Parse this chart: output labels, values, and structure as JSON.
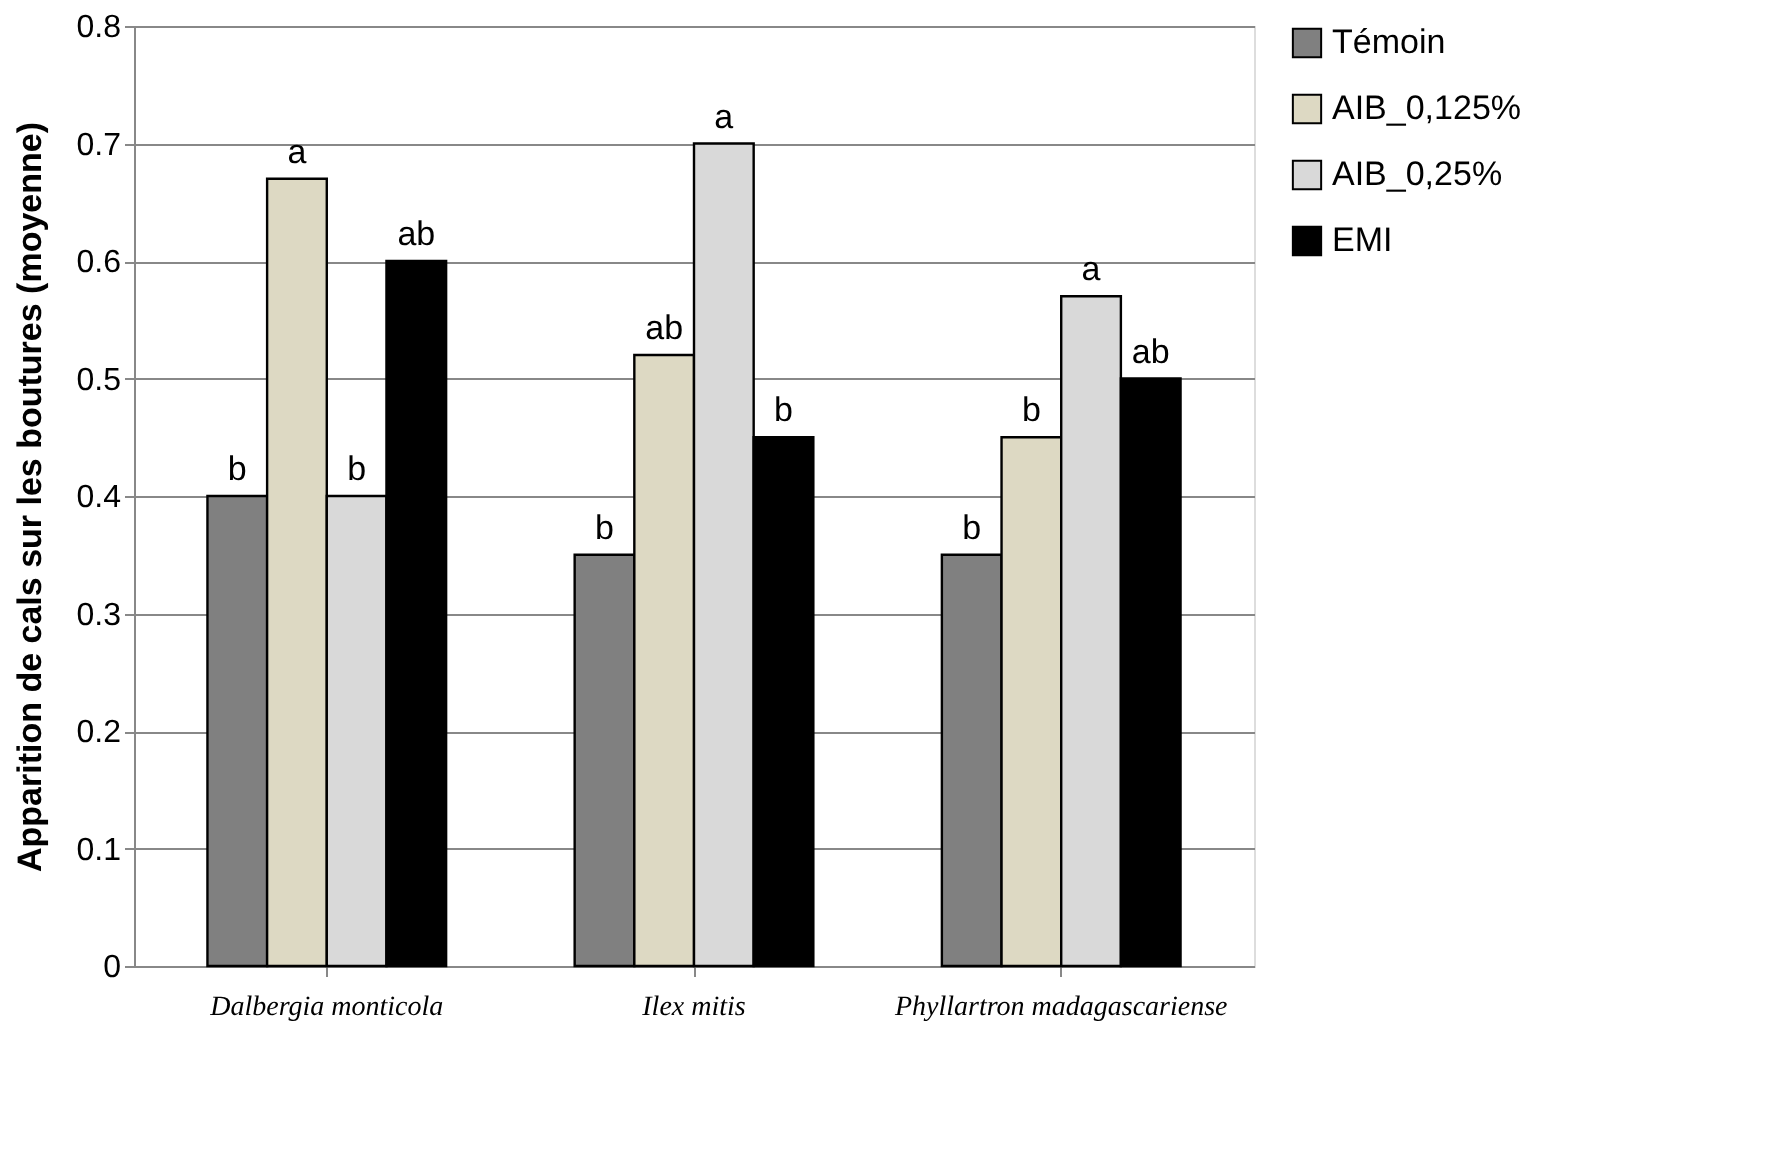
{
  "chart_data": {
    "type": "bar",
    "ylabel": "Apparition de cals sur les boutures (moyenne)",
    "categories": [
      "Dalbergia monticola",
      "Ilex mitis",
      "Phyllartron madagascariense"
    ],
    "series": [
      {
        "name": "Témoin",
        "color": "#808080",
        "values": [
          0.4,
          0.35,
          0.35
        ],
        "value_labels": [
          "b",
          "b",
          "b"
        ]
      },
      {
        "name": "AIB_0,125%",
        "color": "#ddd9c3",
        "values": [
          0.67,
          0.52,
          0.45
        ],
        "value_labels": [
          "a",
          "ab",
          "b"
        ]
      },
      {
        "name": "AIB_0,25%",
        "color": "#d9d9d9",
        "values": [
          0.4,
          0.7,
          0.57
        ],
        "value_labels": [
          "b",
          "a",
          "a"
        ]
      },
      {
        "name": "EMI",
        "color": "#000000",
        "values": [
          0.6,
          0.45,
          0.5
        ],
        "value_labels": [
          "ab",
          "b",
          "ab"
        ]
      }
    ],
    "ylim": [
      0,
      0.8
    ],
    "yticks": [
      0,
      0.1,
      0.2,
      0.3,
      0.4,
      0.5,
      0.6,
      0.7,
      0.8
    ],
    "grid": "y",
    "legend": "right"
  }
}
